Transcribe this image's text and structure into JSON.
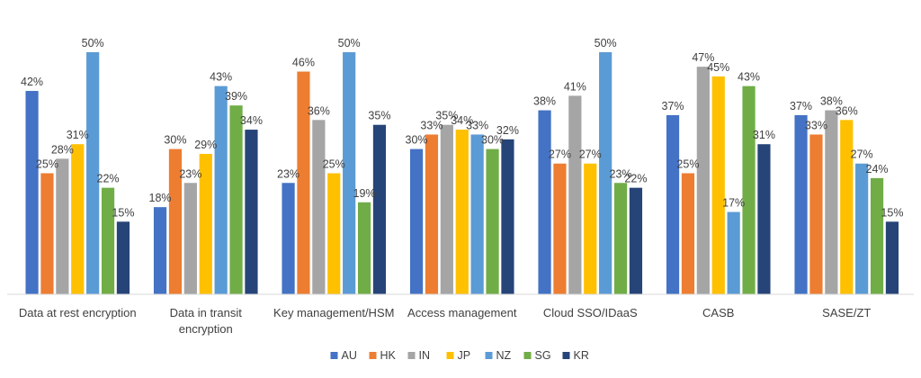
{
  "chart_data": {
    "type": "bar",
    "title": "",
    "xlabel": "",
    "ylabel": "",
    "ylim": [
      0,
      50
    ],
    "grid": false,
    "legend_position": "bottom",
    "categories": [
      [
        "Data at rest encryption"
      ],
      [
        "Data in transit",
        "encryption"
      ],
      [
        "Key management/HSM"
      ],
      [
        "Access management"
      ],
      [
        "Cloud SSO/IDaaS"
      ],
      [
        "CASB"
      ],
      [
        "SASE/ZT"
      ]
    ],
    "series": [
      {
        "name": "AU",
        "color": "#4472C4",
        "values": [
          42,
          18,
          23,
          30,
          38,
          37,
          37
        ]
      },
      {
        "name": "HK",
        "color": "#ED7D31",
        "values": [
          25,
          30,
          46,
          33,
          27,
          25,
          33
        ]
      },
      {
        "name": "IN",
        "color": "#A5A5A5",
        "values": [
          28,
          23,
          36,
          35,
          41,
          47,
          38
        ]
      },
      {
        "name": "JP",
        "color": "#FFC000",
        "values": [
          31,
          29,
          25,
          34,
          27,
          45,
          36
        ]
      },
      {
        "name": "NZ",
        "color": "#5B9BD5",
        "values": [
          50,
          43,
          50,
          33,
          50,
          17,
          27
        ]
      },
      {
        "name": "SG",
        "color": "#70AD47",
        "values": [
          22,
          39,
          19,
          30,
          23,
          43,
          24
        ]
      },
      {
        "name": "KR",
        "color": "#264478",
        "values": [
          15,
          34,
          35,
          32,
          22,
          31,
          15
        ]
      }
    ],
    "value_suffix": "%"
  }
}
